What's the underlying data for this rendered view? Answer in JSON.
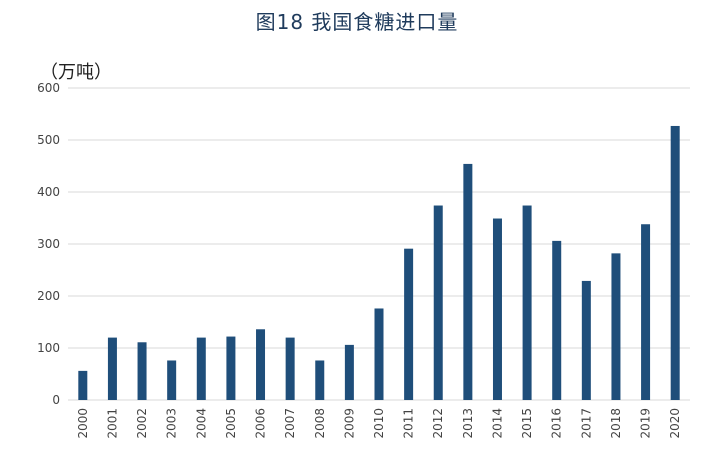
{
  "chart_data": {
    "type": "bar",
    "title": "图18  我国食糖进口量",
    "ylabel": "（万吨）",
    "xlabel": "",
    "ylim": [
      0,
      600
    ],
    "yticks": [
      0,
      100,
      200,
      300,
      400,
      500,
      600
    ],
    "grid": true,
    "categories": [
      "2000",
      "2001",
      "2002",
      "2003",
      "2004",
      "2005",
      "2006",
      "2007",
      "2008",
      "2009",
      "2010",
      "2011",
      "2012",
      "2013",
      "2014",
      "2015",
      "2016",
      "2017",
      "2018",
      "2019",
      "2020"
    ],
    "values": [
      56,
      120,
      111,
      76,
      120,
      122,
      136,
      120,
      76,
      106,
      176,
      291,
      374,
      454,
      349,
      374,
      306,
      229,
      282,
      338,
      527
    ],
    "bar_color": "#1f4e7a",
    "grid_color": "#d9d9d9"
  }
}
